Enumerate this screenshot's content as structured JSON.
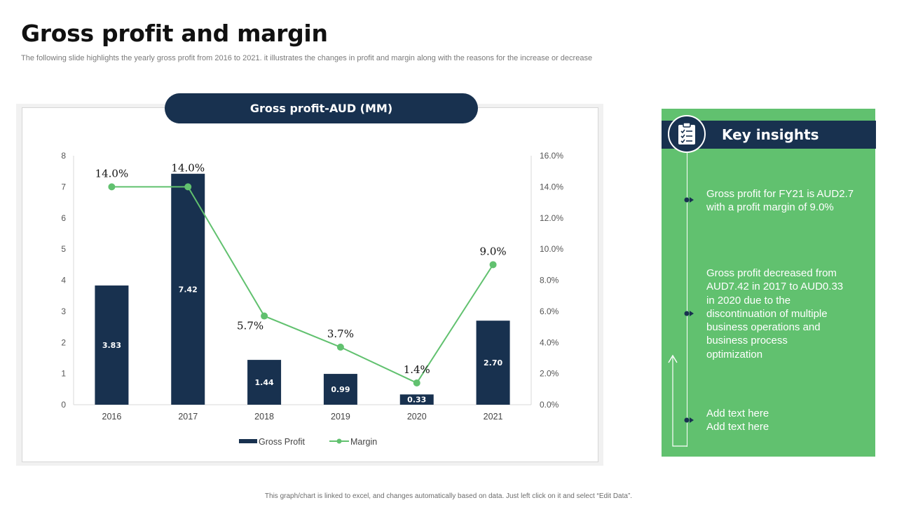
{
  "page": {
    "title": "Gross profit and margin",
    "subtitle": "The following slide highlights the yearly gross profit from 2016 to  2021. it illustrates the changes in profit and margin along with the reasons for the increase or decrease",
    "footer_note": "This graph/chart is linked to excel, and changes automatically based on data. Just left click on it and select “Edit Data”."
  },
  "chart_data": {
    "type": "bar",
    "title": "Gross profit-AUD (MM)",
    "categories": [
      "2016",
      "2017",
      "2018",
      "2019",
      "2020",
      "2021"
    ],
    "series": [
      {
        "name": "Gross Profit",
        "kind": "bar",
        "axis": "left",
        "values": [
          3.83,
          7.42,
          1.44,
          0.99,
          0.33,
          2.7
        ],
        "labels": [
          "3.83",
          "7.42",
          "1.44",
          "0.99",
          "0.33",
          "2.70"
        ],
        "color": "#18314f"
      },
      {
        "name": "Margin",
        "kind": "line",
        "axis": "right",
        "values": [
          14.0,
          14.0,
          5.7,
          3.7,
          1.4,
          9.0
        ],
        "labels": [
          "14.0%",
          "14.0%",
          "5.7%",
          "3.7%",
          "1.4%",
          "9.0%"
        ],
        "color": "#61c16f"
      }
    ],
    "ylim": [
      0,
      8
    ],
    "yticks": [
      "0",
      "1",
      "2",
      "3",
      "4",
      "5",
      "6",
      "7",
      "8"
    ],
    "y2lim": [
      0,
      16
    ],
    "y2ticks": [
      "0.0%",
      "2.0%",
      "4.0%",
      "6.0%",
      "8.0%",
      "10.0%",
      "12.0%",
      "14.0%",
      "16.0%"
    ],
    "legend": "bottom",
    "grid": false
  },
  "insights": {
    "title": "Key insights",
    "items": [
      {
        "text": "Gross profit for FY21 is AUD2.7 with a profit margin of 9.0%"
      },
      {
        "text": "Gross profit decreased from AUD7.42 in 2017 to AUD0.33 in 2020 due to the discontinuation of multiple business operations and business process optimization"
      },
      {
        "text": "Add text here Add text here"
      }
    ]
  },
  "icons": {
    "clipboard": "clipboard-icon",
    "bullet": "arrow-bullet-icon",
    "return_arrow": "up-arrow-icon"
  },
  "colors": {
    "navy": "#18314f",
    "green": "#61c16f",
    "title": "#111111"
  }
}
